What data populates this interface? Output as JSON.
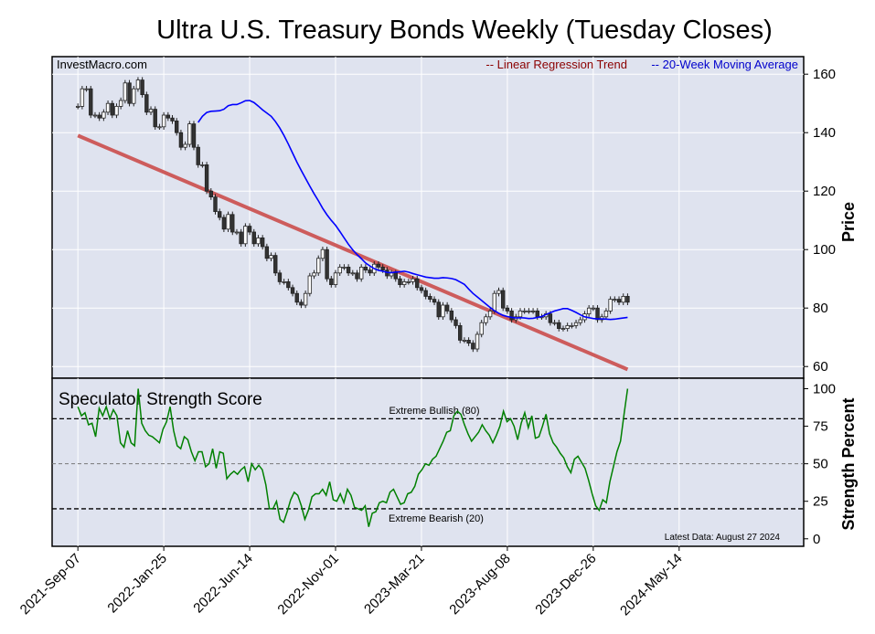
{
  "title": "Ultra U.S. Treasury Bonds Weekly (Tuesday Closes)",
  "watermark": "InvestMacro.com",
  "legend": {
    "trend_label": "-- Linear Regression Trend",
    "ma_label": "-- 20-Week Moving Average",
    "trend_color": "#8b0000",
    "ma_color": "#0000cc"
  },
  "price_panel": {
    "ylabel": "Price",
    "yticks": [
      "60",
      "80",
      "100",
      "120",
      "140",
      "160"
    ]
  },
  "strength_panel": {
    "title": "Speculator Strength Score",
    "ylabel": "Strength Percent",
    "yticks": [
      "0",
      "25",
      "50",
      "75",
      "100"
    ],
    "extreme_bullish": "Extreme Bullish (80)",
    "extreme_bearish": "Extreme Bearish (20)",
    "latest_data": "Latest Data: August 27 2024"
  },
  "x_ticks": [
    "2021-Sep-07",
    "2022-Jan-25",
    "2022-Jun-14",
    "2022-Nov-01",
    "2023-Mar-21",
    "2023-Aug-08",
    "2023-Dec-26",
    "2024-May-14"
  ],
  "colors": {
    "panel_bg": "#dfe3ef",
    "grid": "#ffffff",
    "regression": "#cd5c5c",
    "moving_average": "#0000ff",
    "strength_line": "#008000",
    "candle_up": "#ffffff",
    "candle_down": "#333333"
  },
  "chart_data": [
    {
      "type": "candlestick",
      "title": "Ultra U.S. Treasury Bonds Weekly (Tuesday Closes)",
      "ylabel": "Price",
      "ylim": [
        56,
        166
      ],
      "x_range": [
        -6,
        169
      ],
      "x_tick_weeks": [
        0,
        20,
        40,
        60,
        80,
        100,
        120,
        140
      ],
      "closes": [
        149,
        155,
        155,
        146,
        146,
        145,
        147,
        150,
        146,
        149,
        151,
        157,
        150,
        155,
        158,
        153,
        147,
        148,
        142,
        142,
        146,
        145,
        144,
        140,
        135,
        136,
        143,
        135,
        129,
        129,
        120,
        118,
        113,
        111,
        107,
        112,
        106,
        106,
        102,
        108,
        106,
        102,
        104,
        101,
        97,
        98,
        92,
        89,
        89,
        87,
        85,
        82,
        81,
        85,
        91,
        92,
        97,
        100,
        90,
        88,
        92,
        94,
        94,
        92,
        92,
        90,
        94,
        93,
        92,
        95,
        94,
        93,
        91,
        92,
        90,
        88,
        89,
        89,
        90,
        87,
        86,
        84,
        83,
        82,
        77,
        81,
        79,
        76,
        74,
        69,
        69,
        68,
        66,
        71,
        75,
        77,
        79,
        85,
        86,
        80,
        79,
        76,
        77,
        79,
        79,
        79,
        79,
        77,
        77,
        78,
        75,
        75,
        73,
        73,
        74,
        74,
        75,
        76,
        78,
        80,
        80,
        76,
        77,
        79,
        83,
        83,
        82,
        84,
        82
      ],
      "moving_average": [
        143.5,
        145.6,
        146.9,
        147.3,
        147.4,
        147.5,
        148.0,
        149.2,
        149.6,
        149.6,
        150.2,
        150.9,
        151.0,
        150.3,
        149.1,
        147.8,
        146.7,
        145.6,
        143.8,
        141.6,
        139.0,
        136.1,
        133.0,
        129.9,
        127.1,
        124.4,
        121.7,
        119.1,
        116.7,
        114.1,
        111.9,
        110.0,
        108.3,
        106.2,
        104.0,
        101.8,
        99.9,
        98.3,
        96.9,
        95.4,
        94.4,
        93.5,
        92.9,
        92.6,
        92.2,
        92.1,
        92.3,
        92.4,
        92.6,
        92.3,
        91.8,
        91.4,
        91.0,
        90.6,
        90.4,
        90.2,
        90.2,
        90.4,
        90.3,
        90.1,
        89.7,
        88.9,
        88.1,
        86.5,
        85.0,
        83.8,
        82.6,
        81.4,
        80.2,
        79.1,
        78.2,
        77.5,
        77.1,
        76.8,
        76.6,
        76.7,
        76.6,
        76.4,
        76.5,
        76.8,
        77.1,
        77.8,
        78.4,
        79.0,
        79.4,
        79.8,
        79.8,
        79.2,
        78.5,
        77.7,
        77.0,
        76.7,
        76.4,
        76.3,
        76.3,
        76.2,
        76.1,
        76.2,
        76.4,
        76.6,
        76.8
      ],
      "regression": {
        "start": [
          0,
          139.0
        ],
        "end": [
          128,
          59.0
        ]
      }
    },
    {
      "type": "line",
      "title": "Speculator Strength Score",
      "ylabel": "Strength Percent",
      "ylim": [
        -5,
        107
      ],
      "x_range": [
        -6,
        169
      ],
      "thresholds": [
        80,
        20
      ],
      "values": [
        88,
        82,
        84,
        76,
        77,
        68,
        87,
        82,
        88,
        80,
        86,
        82,
        64,
        61,
        72,
        64,
        62,
        100,
        77,
        72,
        69,
        68,
        66,
        64,
        73,
        78,
        88,
        72,
        62,
        60,
        68,
        66,
        58,
        52,
        58,
        58,
        48,
        50,
        60,
        47,
        58,
        57,
        40,
        43,
        45,
        43,
        46,
        48,
        38,
        50,
        46,
        49,
        46,
        36,
        20,
        20,
        25,
        13,
        11,
        18,
        26,
        31,
        29,
        22,
        13,
        19,
        28,
        30,
        30,
        33,
        29,
        38,
        26,
        25,
        30,
        24,
        33,
        29,
        21,
        20,
        19,
        22,
        8,
        17,
        18,
        24,
        25,
        24,
        31,
        33,
        28,
        23,
        24,
        30,
        31,
        35,
        43,
        46,
        50,
        49,
        53,
        55,
        60,
        65,
        71,
        72,
        82,
        85,
        83,
        76,
        70,
        65,
        68,
        71,
        76,
        72,
        69,
        64,
        69,
        75,
        85,
        78,
        80,
        75,
        66,
        77,
        84,
        74,
        82,
        67,
        68,
        75,
        83,
        70,
        64,
        61,
        57,
        54,
        48,
        44,
        53,
        55,
        51,
        47,
        39,
        30,
        22,
        19,
        26,
        24,
        38,
        48,
        58,
        65,
        83,
        100
      ],
      "latest_value": 100
    }
  ]
}
